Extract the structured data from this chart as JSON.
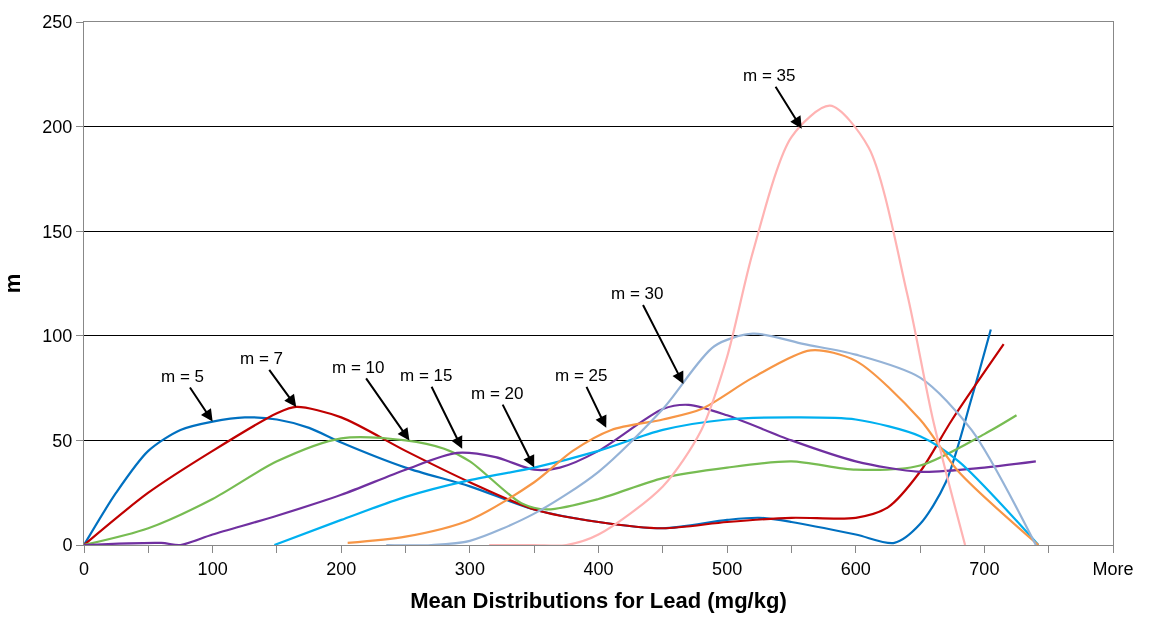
{
  "chart_data": {
    "type": "line",
    "xlabel": "Mean Distributions for Lead (mg/kg)",
    "ylabel": "m",
    "xlim": [
      0,
      800
    ],
    "ylim": [
      0,
      250
    ],
    "xticks": [
      0,
      {
        "value": 50,
        "label": null
      },
      100,
      {
        "value": 150,
        "label": null
      },
      200,
      {
        "value": 250,
        "label": null
      },
      300,
      {
        "value": 350,
        "label": null
      },
      400,
      {
        "value": 450,
        "label": null
      },
      500,
      {
        "value": 550,
        "label": null
      },
      600,
      {
        "value": 650,
        "label": null
      },
      700,
      {
        "value": 750,
        "label": null
      },
      {
        "value": 800,
        "label": "More"
      }
    ],
    "yticks": [
      0,
      50,
      100,
      150,
      200,
      250
    ],
    "grid": "y",
    "marker": "none",
    "line_style": "solid",
    "series": [
      {
        "color": "#0070c0",
        "x": [
          0,
          25,
          50,
          75,
          100,
          125,
          150,
          175,
          200,
          250,
          300,
          350,
          400,
          450,
          500,
          525,
          550,
          600,
          630,
          650,
          670,
          690,
          705
        ],
        "values": [
          0,
          25,
          45,
          55,
          59,
          61,
          60,
          56,
          49,
          37,
          28,
          17,
          11,
          8,
          12,
          13,
          11,
          5,
          1,
          10,
          30,
          70,
          103
        ]
      },
      {
        "color": "#c00000",
        "x": [
          0,
          50,
          100,
          150,
          165,
          200,
          250,
          300,
          350,
          400,
          450,
          500,
          550,
          600,
          625,
          650,
          675,
          715
        ],
        "values": [
          0,
          25,
          45,
          63,
          66,
          61,
          45,
          30,
          17,
          11,
          8,
          11,
          13,
          13,
          18,
          35,
          60,
          96
        ]
      },
      {
        "color": "#77bc52",
        "x": [
          0,
          50,
          100,
          150,
          200,
          250,
          280,
          300,
          340,
          360,
          400,
          450,
          500,
          550,
          600,
          650,
          700,
          725
        ],
        "values": [
          0,
          8,
          22,
          40,
          51,
          50,
          46,
          40,
          20,
          17,
          22,
          32,
          37,
          40,
          36,
          38,
          53,
          62
        ]
      },
      {
        "color": "#7030a0",
        "x": [
          0,
          60,
          75,
          100,
          150,
          200,
          250,
          290,
          320,
          350,
          370,
          400,
          450,
          470,
          500,
          550,
          600,
          650,
          700,
          740
        ],
        "values": [
          0,
          1,
          0,
          5,
          14,
          24,
          36,
          44,
          42,
          36,
          37,
          45,
          65,
          67,
          62,
          50,
          40,
          35,
          37,
          40
        ]
      },
      {
        "color": "#00b0f0",
        "x": [
          148,
          200,
          250,
          300,
          350,
          400,
          450,
          500,
          550,
          600,
          650,
          680,
          742
        ],
        "values": [
          0,
          12,
          23,
          31,
          37,
          45,
          55,
          60,
          61,
          60,
          52,
          40,
          0
        ]
      },
      {
        "color": "#f79646",
        "x": [
          205,
          250,
          300,
          350,
          380,
          410,
          450,
          480,
          520,
          565,
          600,
          650,
          680,
          742
        ],
        "values": [
          1,
          4,
          12,
          30,
          45,
          55,
          60,
          65,
          80,
          93,
          88,
          60,
          35,
          0
        ]
      },
      {
        "color": "#95b3d7",
        "x": [
          235,
          270,
          300,
          350,
          400,
          450,
          490,
          520,
          560,
          600,
          650,
          690,
          740
        ],
        "values": [
          0,
          0,
          2,
          15,
          35,
          65,
          95,
          101,
          96,
          91,
          80,
          55,
          0
        ]
      },
      {
        "color": "#ffb3b3",
        "x": [
          315,
          350,
          375,
          400,
          450,
          480,
          500,
          520,
          550,
          580,
          610,
          640,
          660,
          685
        ],
        "values": [
          0,
          0,
          0,
          5,
          28,
          55,
          90,
          140,
          195,
          210,
          190,
          120,
          60,
          0
        ]
      }
    ],
    "annotations": [
      {
        "text": "m = 5",
        "x": 100,
        "y": 59
      },
      {
        "text": "m = 7",
        "x": 165,
        "y": 66
      },
      {
        "text": "m = 10",
        "x": 253,
        "y": 50
      },
      {
        "text": "m = 15",
        "x": 294,
        "y": 46
      },
      {
        "text": "m = 20",
        "x": 350,
        "y": 37
      },
      {
        "text": "m = 25",
        "x": 406,
        "y": 56
      },
      {
        "text": "m = 30",
        "x": 466,
        "y": 77
      },
      {
        "text": "m = 35",
        "x": 558,
        "y": 199
      }
    ]
  }
}
